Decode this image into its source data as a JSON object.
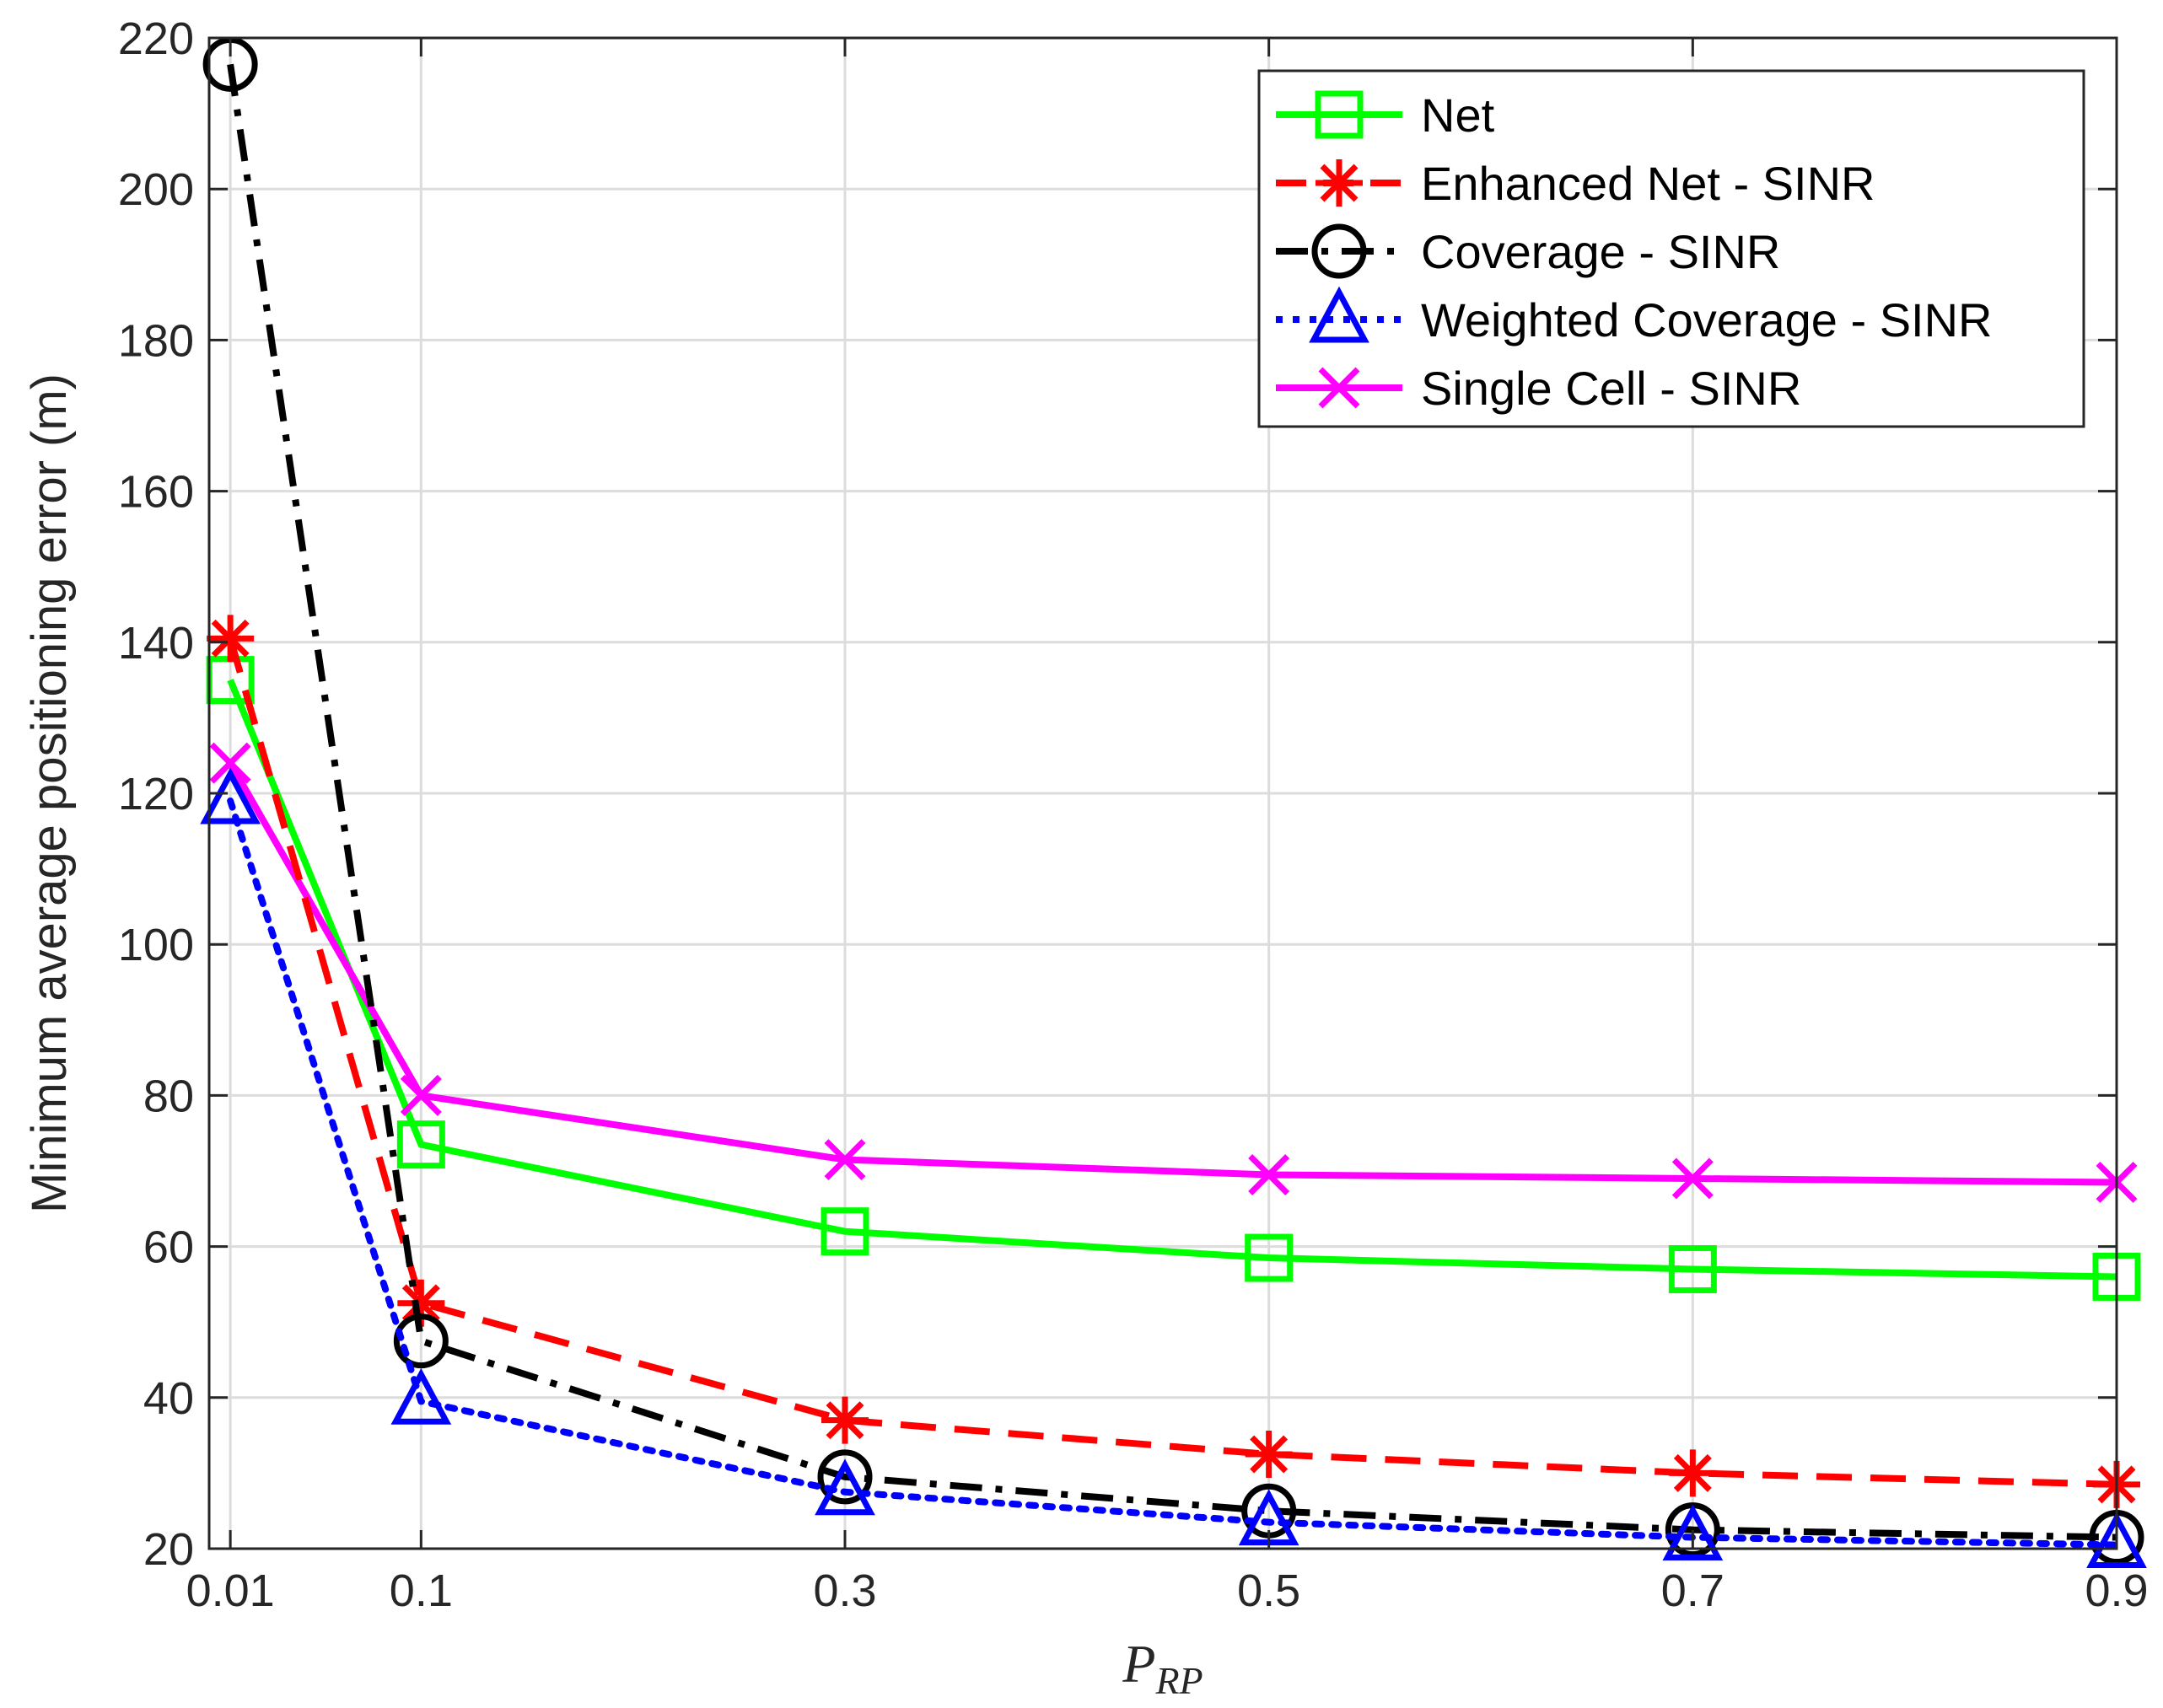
{
  "chart_data": {
    "type": "line",
    "title": "",
    "xlabel": {
      "main": "P",
      "sub": "RP"
    },
    "ylabel": "Minimum average positioning error (m)",
    "xlim": [
      0,
      0.9
    ],
    "ylim": [
      20,
      220
    ],
    "x_ticks": [
      0.01,
      0.1,
      0.3,
      0.5,
      0.7,
      0.9
    ],
    "x_tick_labels": [
      "0.01",
      "0.1",
      "0.3",
      "0.5",
      "0.7",
      "0.9"
    ],
    "y_ticks": [
      20,
      40,
      60,
      80,
      100,
      120,
      140,
      160,
      180,
      200,
      220
    ],
    "y_tick_labels": [
      "20",
      "40",
      "60",
      "80",
      "100",
      "120",
      "140",
      "160",
      "180",
      "200",
      "220"
    ],
    "grid": true,
    "legend_position": "top-right",
    "x": [
      0.01,
      0.1,
      0.3,
      0.5,
      0.7,
      0.9
    ],
    "series": [
      {
        "name": "Net",
        "values": [
          135,
          73.5,
          62,
          58.5,
          57,
          56
        ],
        "color": "#00ff00",
        "line_style": "solid",
        "marker": "square"
      },
      {
        "name": "Enhanced Net - SINR",
        "values": [
          140.5,
          52.5,
          37,
          32.5,
          30,
          28.5
        ],
        "color": "#ff0000",
        "line_style": "dashed",
        "marker": "asterisk"
      },
      {
        "name": "Coverage - SINR",
        "values": [
          216.5,
          47.5,
          29.5,
          25,
          22.5,
          21.5
        ],
        "color": "#000000",
        "line_style": "dashdot",
        "marker": "circle"
      },
      {
        "name": "Weighted Coverage - SINR",
        "values": [
          119,
          39.5,
          27.5,
          23.5,
          21.5,
          20.5
        ],
        "color": "#0000ff",
        "line_style": "dotted",
        "marker": "triangle"
      },
      {
        "name": "Single Cell - SINR",
        "values": [
          124,
          80,
          71.5,
          69.5,
          69,
          68.5
        ],
        "color": "#ff00ff",
        "line_style": "solid",
        "marker": "x"
      }
    ]
  }
}
